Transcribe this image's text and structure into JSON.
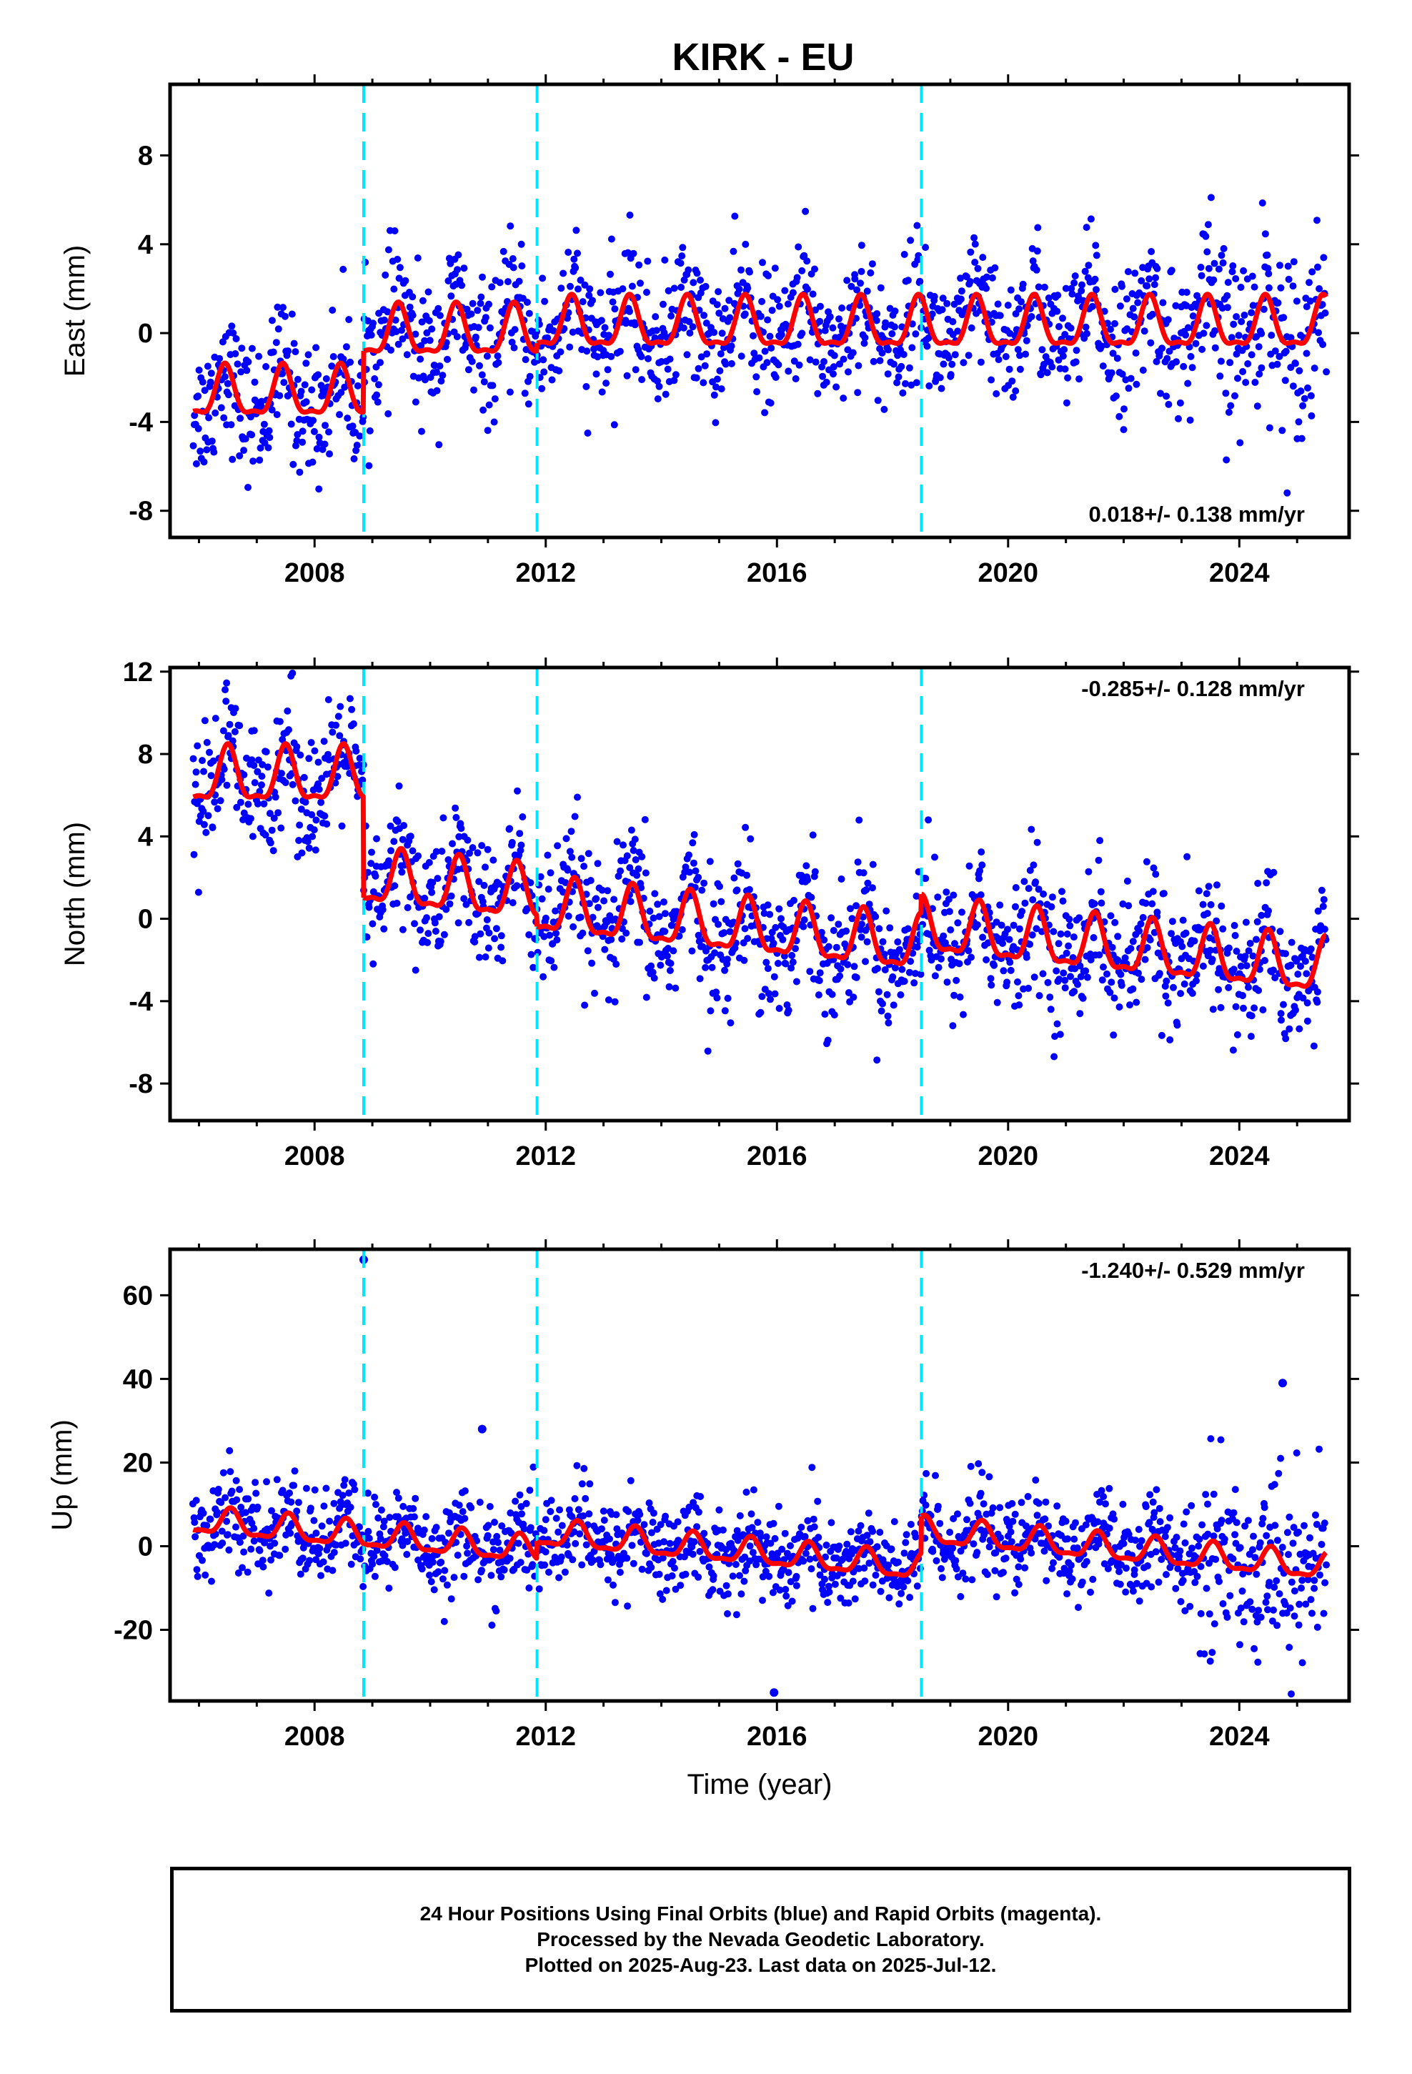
{
  "title": "KIRK - EU",
  "footer": {
    "line1": "24 Hour Positions Using Final Orbits (blue) and Rapid Orbits (magenta).",
    "line2": "Processed by the Nevada Geodetic Laboratory.",
    "line3": "Plotted on 2025-Aug-23. Last data on 2025-Jul-12."
  },
  "colors": {
    "data": "#0000ff",
    "model": "#ff0000",
    "offsets": "#00e5ff",
    "frame": "#000000"
  },
  "chart_data": [
    {
      "type": "scatter",
      "ylabel": "East (mm)",
      "xlabel": "",
      "xlim": [
        2005.5,
        2025.9
      ],
      "ylim": [
        -9.2,
        11.2
      ],
      "x_ticks": [
        2008,
        2012,
        2016,
        2020,
        2024
      ],
      "y_ticks": [
        -8,
        -4,
        0,
        4,
        8
      ],
      "rate_label": "0.018+/- 0.138 mm/yr",
      "rate_label_position": "bottom-right",
      "offset_lines": [
        2008.85,
        2011.85,
        2018.5
      ],
      "data_span": [
        2005.9,
        2025.5
      ],
      "model_segments": [
        {
          "start": 2005.9,
          "end": 2008.85,
          "offset": -2.8,
          "trend": 0.0,
          "amplitude": 1.45,
          "phase_peak": 0.45
        },
        {
          "start": 2008.85,
          "end": 2011.85,
          "offset": -0.05,
          "trend": 0.0,
          "amplitude": 1.45,
          "phase_peak": 0.45
        },
        {
          "start": 2011.85,
          "end": 2018.5,
          "offset": 0.3,
          "trend": 0.0,
          "amplitude": 1.45,
          "phase_peak": 0.45
        },
        {
          "start": 2018.5,
          "end": 2025.5,
          "offset": 0.3,
          "trend": 0.0,
          "amplitude": 1.45,
          "phase_peak": 0.45
        }
      ],
      "scatter_sigma": 1.5
    },
    {
      "type": "scatter",
      "ylabel": "North (mm)",
      "xlabel": "",
      "xlim": [
        2005.5,
        2025.9
      ],
      "ylim": [
        -9.8,
        12.2
      ],
      "x_ticks": [
        2008,
        2012,
        2016,
        2020,
        2024
      ],
      "y_ticks": [
        -8,
        -4,
        0,
        4,
        8,
        12
      ],
      "rate_label": "-0.285+/- 0.128 mm/yr",
      "rate_label_position": "top-right",
      "offset_lines": [
        2008.85,
        2011.85,
        2018.5
      ],
      "data_span": [
        2005.9,
        2025.5
      ],
      "model_segments": [
        {
          "start": 2005.9,
          "end": 2008.85,
          "offset": 6.8,
          "trend": 0.0,
          "amplitude": 1.7,
          "phase_peak": 0.5
        },
        {
          "start": 2008.85,
          "end": 2011.85,
          "offset": 1.9,
          "trend": -0.285,
          "amplitude": 1.7,
          "phase_peak": 0.5
        },
        {
          "start": 2011.85,
          "end": 2018.5,
          "offset": 0.5,
          "trend": -0.285,
          "amplitude": 1.7,
          "phase_peak": 0.5
        },
        {
          "start": 2018.5,
          "end": 2025.5,
          "offset": -0.5,
          "trend": -0.285,
          "amplitude": 1.7,
          "phase_peak": 0.5
        }
      ],
      "scatter_sigma": 1.6
    },
    {
      "type": "scatter",
      "ylabel": "Up (mm)",
      "xlabel": "Time (year)",
      "xlim": [
        2005.5,
        2025.9
      ],
      "ylim": [
        -37,
        71
      ],
      "x_ticks": [
        2008,
        2012,
        2016,
        2020,
        2024
      ],
      "y_ticks": [
        -20,
        0,
        20,
        40,
        60
      ],
      "rate_label": "-1.240+/- 0.529 mm/yr",
      "rate_label_position": "top-right",
      "offset_lines": [
        2008.85,
        2011.85,
        2018.5
      ],
      "data_span": [
        2005.9,
        2025.5
      ],
      "model_segments": [
        {
          "start": 2005.9,
          "end": 2008.85,
          "offset": 6.0,
          "trend": -1.24,
          "amplitude": 4.0,
          "phase_peak": 0.55
        },
        {
          "start": 2008.85,
          "end": 2011.85,
          "offset": 2.5,
          "trend": -1.24,
          "amplitude": 4.0,
          "phase_peak": 0.55
        },
        {
          "start": 2011.85,
          "end": 2018.5,
          "offset": 3.0,
          "trend": -1.24,
          "amplitude": 4.0,
          "phase_peak": 0.55
        },
        {
          "start": 2018.5,
          "end": 2025.5,
          "offset": 3.5,
          "trend": -1.24,
          "amplitude": 4.0,
          "phase_peak": 0.55
        }
      ],
      "outliers": [
        [
          2008.85,
          68.5
        ],
        [
          2015.95,
          -35.0
        ],
        [
          2024.75,
          39.0
        ],
        [
          2010.9,
          28.0
        ]
      ],
      "scatter_sigma": 5.5
    }
  ]
}
